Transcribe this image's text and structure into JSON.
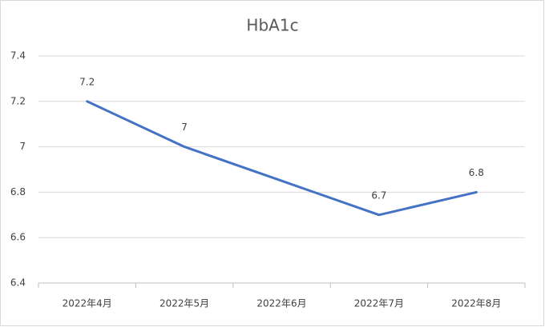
{
  "chart_data": {
    "type": "line",
    "title": "HbA1c",
    "categories": [
      "2022年4月",
      "2022年5月",
      "2022年6月",
      "2022年7月",
      "2022年8月"
    ],
    "values": [
      7.2,
      7,
      6.85,
      6.7,
      6.8
    ],
    "value_labels": [
      "7.2",
      "7",
      null,
      "6.7",
      "6.8"
    ],
    "color": "#4472c4",
    "ylim": [
      6.4,
      7.4
    ],
    "yticks": [
      6.4,
      6.6,
      6.8,
      7,
      7.2,
      7.4
    ],
    "grid": true
  }
}
